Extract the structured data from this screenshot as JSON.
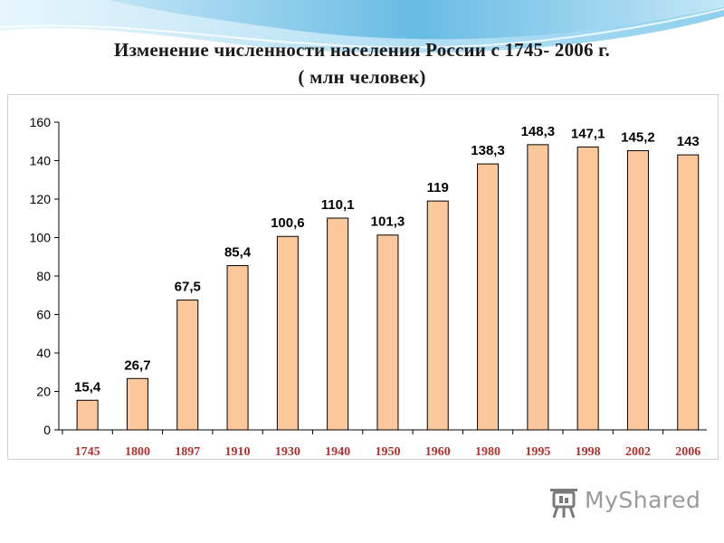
{
  "title": {
    "line1": "Изменение численности населения России с 1745- 2006 г.",
    "line2": "( млн человек)"
  },
  "logo_text": "MyShared",
  "colors": {
    "bar_fill": "#fcc89b",
    "bar_stroke": "#000000",
    "year_label": "#b0312d",
    "header_blue": "#5fb7e3"
  },
  "chart_data": {
    "type": "bar",
    "title": "Изменение численности населения России с 1745- 2006 г. ( млн человек)",
    "categories": [
      "1745",
      "1800",
      "1897",
      "1910",
      "1930",
      "1940",
      "1950",
      "1960",
      "1980",
      "1995",
      "1998",
      "2002",
      "2006"
    ],
    "values": [
      15.4,
      26.7,
      67.5,
      85.4,
      100.6,
      110.1,
      101.3,
      119,
      138.3,
      148.3,
      147.1,
      145.2,
      143
    ],
    "data_labels": [
      "15,4",
      "26,7",
      "67,5",
      "85,4",
      "100,6",
      "110,1",
      "101,3",
      "119",
      "138,3",
      "148,3",
      "147,1",
      "145,2",
      "143"
    ],
    "ylim": [
      0,
      160
    ],
    "yticks": [
      "0",
      "20",
      "40",
      "60",
      "80",
      "100",
      "120",
      "140",
      "160"
    ],
    "xlabel": "",
    "ylabel": "",
    "grid": false,
    "legend": "none"
  }
}
